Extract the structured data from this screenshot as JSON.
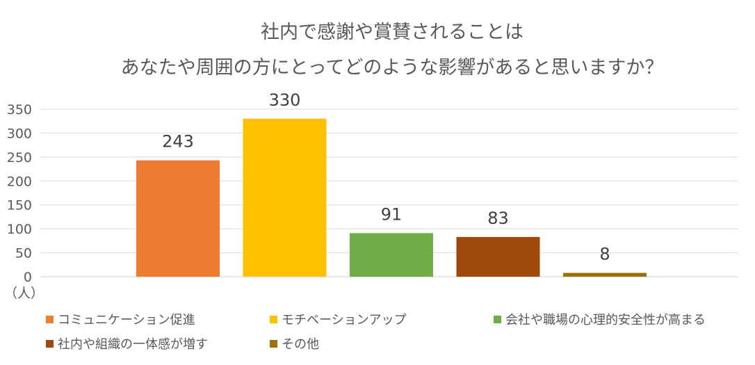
{
  "chart_data": {
    "type": "bar",
    "title": [
      "社内で感謝や賞賛されることは",
      "あなたや周囲の方にとってどのような影響があると思いますか？"
    ],
    "categories": [
      "コミュニケーション促進",
      "モチベーションアップ",
      "会社や職場の心理的安全性が高まる",
      "社内や組織の一体感が増す",
      "その他"
    ],
    "values": [
      243,
      330,
      91,
      83,
      8
    ],
    "colors": [
      "#ed7d31",
      "#ffc000",
      "#70ad47",
      "#9e480e",
      "#997300"
    ],
    "ylim": [
      0,
      350
    ],
    "yticks": [
      0,
      50,
      100,
      150,
      200,
      250,
      300,
      350
    ],
    "ylabel": "（人）",
    "xlabel": "",
    "grid": true,
    "legend": "bottom"
  }
}
